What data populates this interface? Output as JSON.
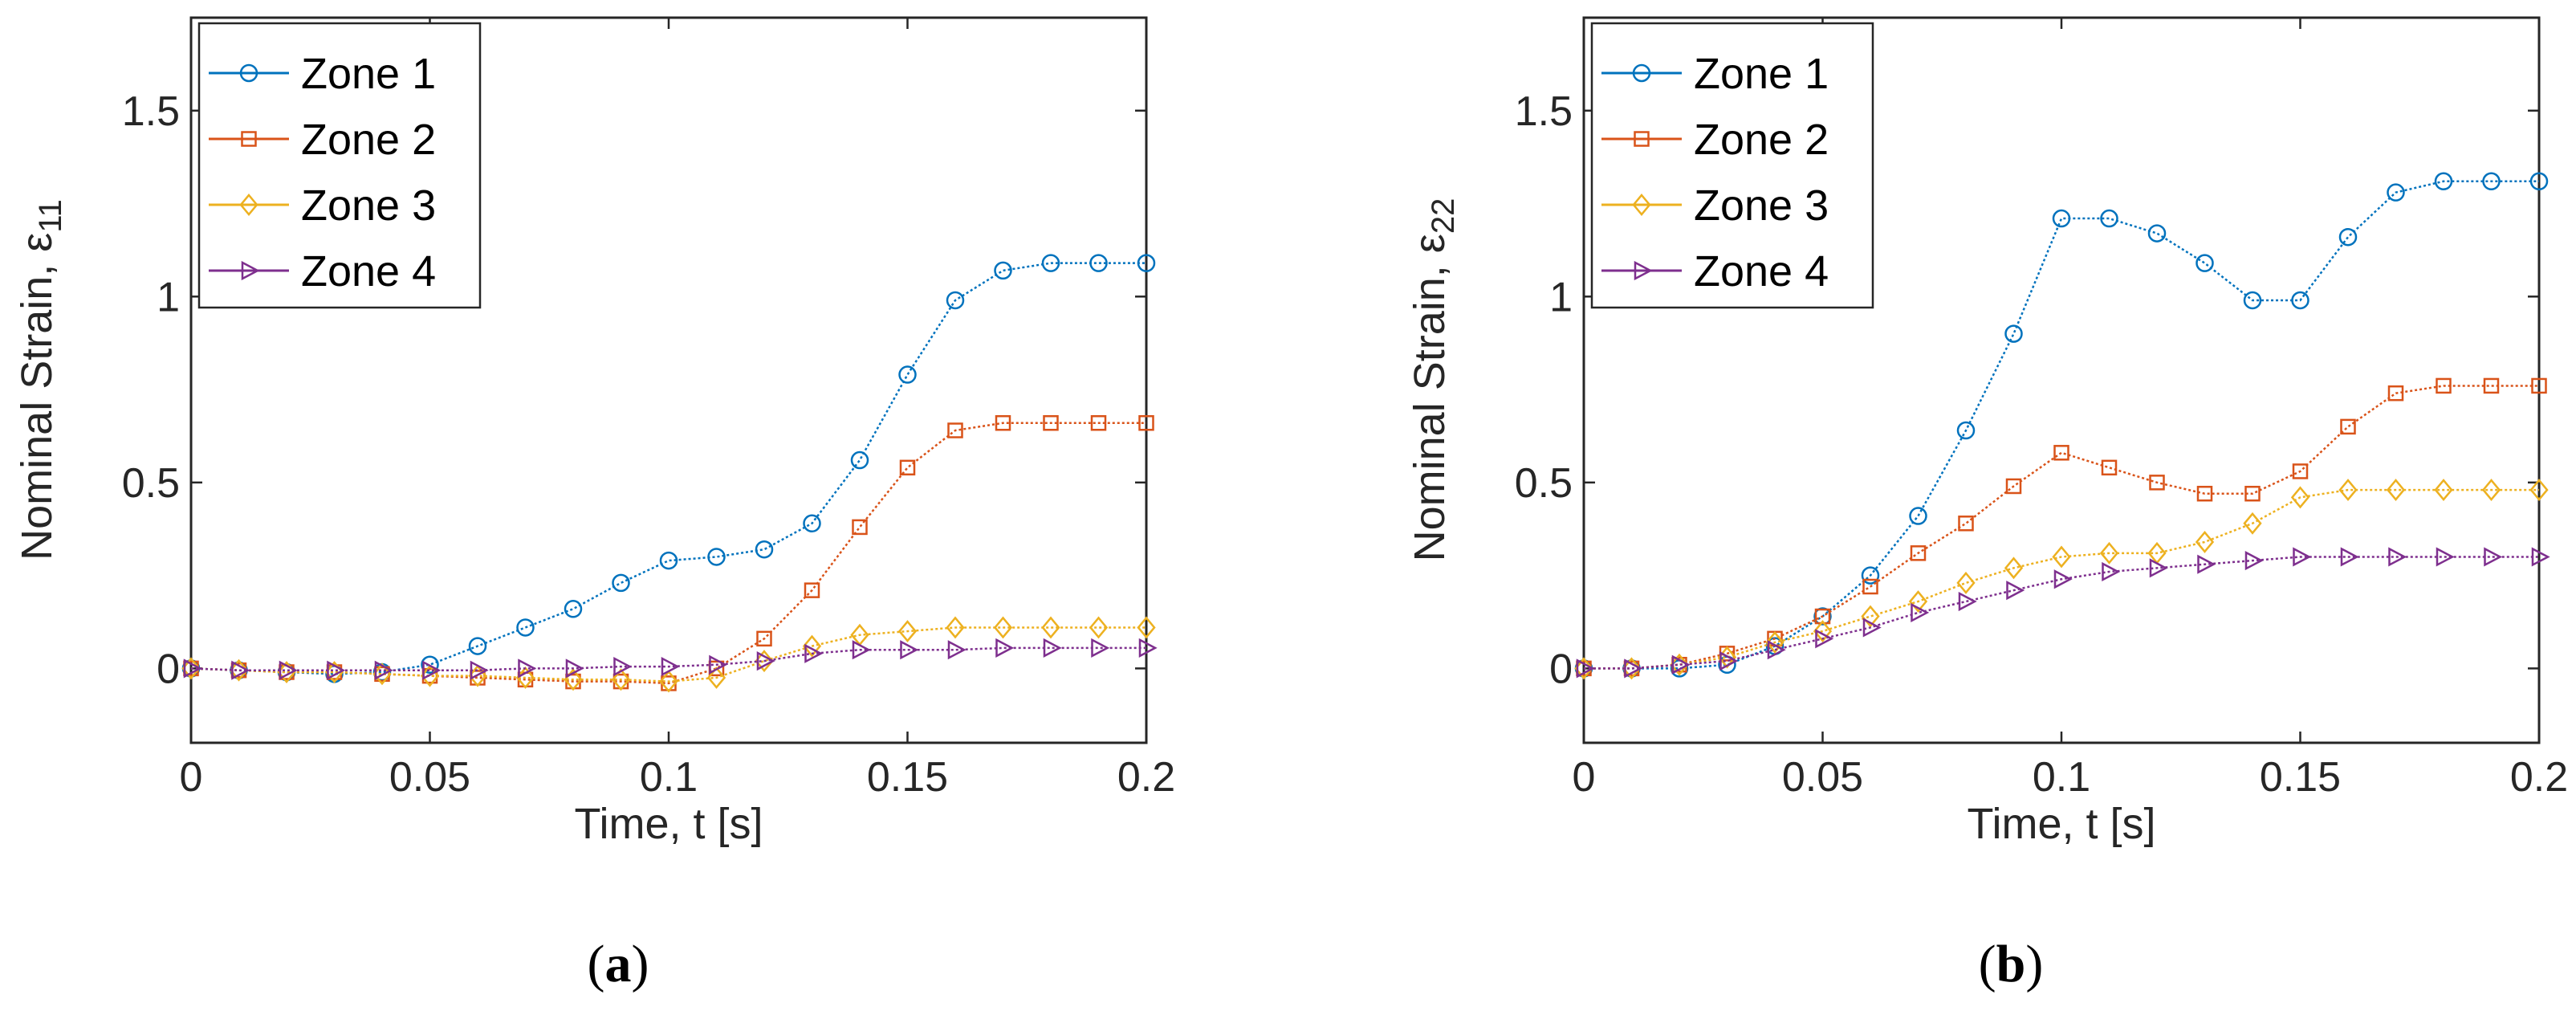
{
  "chart_data": [
    {
      "type": "line",
      "panel": "a",
      "caption_open": "(",
      "caption_letter": "a",
      "caption_close": ")",
      "xlabel": "Time, t [s]",
      "ylabel_main": "Nominal Strain, ε",
      "ylabel_sub": "11",
      "xlim": [
        0,
        0.2
      ],
      "ylim": [
        -0.2,
        1.75
      ],
      "xticks": [
        0,
        0.05,
        0.1,
        0.15,
        0.2
      ],
      "xtick_labels": [
        "0",
        "0.05",
        "0.1",
        "0.15",
        "0.2"
      ],
      "yticks": [
        0,
        0.5,
        1,
        1.5
      ],
      "ytick_labels": [
        "0",
        "0.5",
        "1",
        "1.5"
      ],
      "legend_position": "top-left",
      "x": [
        0,
        0.01,
        0.02,
        0.03,
        0.04,
        0.05,
        0.06,
        0.07,
        0.08,
        0.09,
        0.1,
        0.11,
        0.12,
        0.13,
        0.14,
        0.15,
        0.16,
        0.17,
        0.18,
        0.19,
        0.2
      ],
      "series": [
        {
          "name": "Zone 1",
          "marker": "circle",
          "color": "#0072BD",
          "values": [
            0,
            -0.005,
            -0.01,
            -0.015,
            -0.01,
            0.01,
            0.06,
            0.11,
            0.16,
            0.23,
            0.29,
            0.3,
            0.32,
            0.39,
            0.56,
            0.79,
            0.99,
            1.07,
            1.09,
            1.09,
            1.09
          ]
        },
        {
          "name": "Zone 2",
          "marker": "square",
          "color": "#D95319",
          "values": [
            0,
            -0.005,
            -0.01,
            -0.01,
            -0.015,
            -0.02,
            -0.025,
            -0.03,
            -0.035,
            -0.035,
            -0.04,
            0.0,
            0.08,
            0.21,
            0.38,
            0.54,
            0.64,
            0.66,
            0.66,
            0.66,
            0.66
          ]
        },
        {
          "name": "Zone 3",
          "marker": "diamond",
          "color": "#EDB120",
          "values": [
            0,
            -0.005,
            -0.01,
            -0.01,
            -0.015,
            -0.02,
            -0.02,
            -0.025,
            -0.03,
            -0.03,
            -0.035,
            -0.025,
            0.02,
            0.06,
            0.09,
            0.1,
            0.11,
            0.11,
            0.11,
            0.11,
            0.11
          ]
        },
        {
          "name": "Zone 4",
          "marker": "triangle-right",
          "color": "#7E2F8E",
          "values": [
            0,
            -0.005,
            -0.005,
            -0.005,
            -0.005,
            -0.005,
            -0.005,
            0.0,
            0.0,
            0.005,
            0.005,
            0.01,
            0.02,
            0.04,
            0.05,
            0.05,
            0.05,
            0.055,
            0.055,
            0.055,
            0.055
          ]
        }
      ]
    },
    {
      "type": "line",
      "panel": "b",
      "caption_open": "(",
      "caption_letter": "b",
      "caption_close": ")",
      "xlabel": "Time, t [s]",
      "ylabel_main": "Nominal Strain, ε",
      "ylabel_sub": "22",
      "xlim": [
        0,
        0.2
      ],
      "ylim": [
        -0.2,
        1.75
      ],
      "xticks": [
        0,
        0.05,
        0.1,
        0.15,
        0.2
      ],
      "xtick_labels": [
        "0",
        "0.05",
        "0.1",
        "0.15",
        "0.2"
      ],
      "yticks": [
        0,
        0.5,
        1,
        1.5
      ],
      "ytick_labels": [
        "0",
        "0.5",
        "1",
        "1.5"
      ],
      "legend_position": "top-left",
      "x": [
        0,
        0.01,
        0.02,
        0.03,
        0.04,
        0.05,
        0.06,
        0.07,
        0.08,
        0.09,
        0.1,
        0.11,
        0.12,
        0.13,
        0.14,
        0.15,
        0.16,
        0.17,
        0.18,
        0.19,
        0.2
      ],
      "series": [
        {
          "name": "Zone 1",
          "marker": "circle",
          "color": "#0072BD",
          "values": [
            0,
            0,
            0,
            0.01,
            0.06,
            0.14,
            0.25,
            0.41,
            0.64,
            0.9,
            1.21,
            1.21,
            1.17,
            1.09,
            0.99,
            0.99,
            1.16,
            1.28,
            1.31,
            1.31,
            1.31
          ]
        },
        {
          "name": "Zone 2",
          "marker": "square",
          "color": "#D95319",
          "values": [
            0,
            0,
            0.01,
            0.04,
            0.08,
            0.14,
            0.22,
            0.31,
            0.39,
            0.49,
            0.58,
            0.54,
            0.5,
            0.47,
            0.47,
            0.53,
            0.65,
            0.74,
            0.76,
            0.76,
            0.76
          ]
        },
        {
          "name": "Zone 3",
          "marker": "diamond",
          "color": "#EDB120",
          "values": [
            0,
            0,
            0.01,
            0.03,
            0.07,
            0.1,
            0.14,
            0.18,
            0.23,
            0.27,
            0.3,
            0.31,
            0.31,
            0.34,
            0.39,
            0.46,
            0.48,
            0.48,
            0.48,
            0.48,
            0.48
          ]
        },
        {
          "name": "Zone 4",
          "marker": "triangle-right",
          "color": "#7E2F8E",
          "values": [
            0,
            0,
            0.01,
            0.02,
            0.05,
            0.08,
            0.11,
            0.15,
            0.18,
            0.21,
            0.24,
            0.26,
            0.27,
            0.28,
            0.29,
            0.3,
            0.3,
            0.3,
            0.3,
            0.3,
            0.3
          ]
        }
      ]
    }
  ]
}
